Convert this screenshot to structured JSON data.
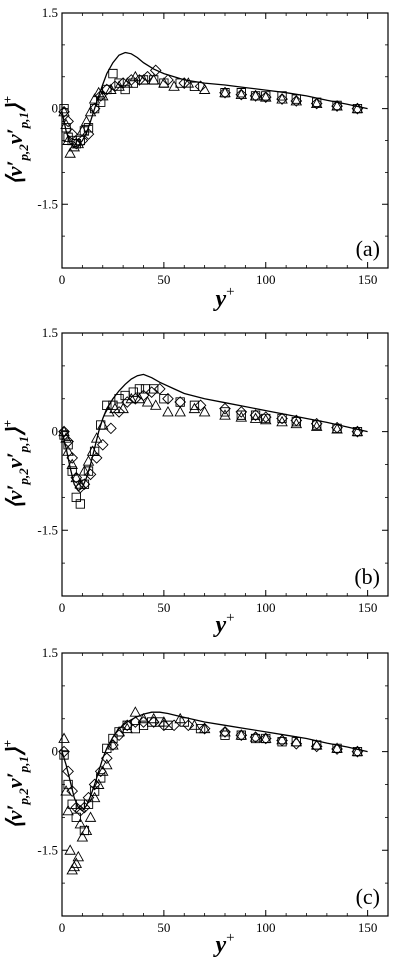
{
  "figure": {
    "ylabel_main": "⟨v′p,2v′p,1⟩",
    "ylabel_display": {
      "open": "⟨",
      "v1": "v′",
      "sub1": "p,2",
      "v2": "v′",
      "sub2": "p,1",
      "close": "⟩",
      "sup": "+"
    },
    "xlabel_display": {
      "base": "y",
      "sup": "+"
    }
  },
  "chart_data": [
    {
      "type": "scatter",
      "panel_label": "(a)",
      "xlabel": "y+",
      "ylabel": "⟨v′p,2v′p,1⟩+",
      "xlim": [
        0,
        160
      ],
      "ylim": [
        -2.5,
        1.5
      ],
      "x_ticks": [
        0,
        50,
        100,
        150
      ],
      "y_ticks": [
        1.5,
        0,
        -1.5
      ],
      "y_tick_labels": [
        "1.5",
        "0",
        "-1.5"
      ],
      "grid": false,
      "series": [
        {
          "marker": "line",
          "x": [
            0,
            2,
            4,
            6,
            8,
            10,
            12,
            14,
            16,
            18,
            20,
            22,
            25,
            28,
            31,
            34,
            37,
            40,
            45,
            50,
            55,
            60,
            70,
            80,
            90,
            100,
            110,
            120,
            130,
            140,
            150
          ],
          "y": [
            -0.05,
            -0.35,
            -0.55,
            -0.6,
            -0.58,
            -0.5,
            -0.38,
            -0.2,
            0.0,
            0.2,
            0.38,
            0.55,
            0.72,
            0.84,
            0.88,
            0.86,
            0.8,
            0.72,
            0.62,
            0.55,
            0.5,
            0.45,
            0.4,
            0.37,
            0.33,
            0.29,
            0.25,
            0.2,
            0.13,
            0.07,
            0.0
          ]
        },
        {
          "marker": "square",
          "x": [
            1,
            2,
            3,
            5,
            7,
            9,
            11,
            13,
            16,
            19,
            22,
            25,
            28,
            31,
            35,
            40,
            45,
            50,
            58,
            65,
            80,
            88,
            95,
            100,
            108,
            115,
            125,
            135,
            145
          ],
          "y": [
            0.0,
            -0.3,
            -0.45,
            -0.5,
            -0.55,
            -0.5,
            -0.35,
            -0.3,
            0.0,
            0.1,
            0.3,
            0.55,
            0.4,
            0.3,
            0.4,
            0.45,
            0.45,
            0.4,
            0.4,
            0.35,
            0.25,
            0.25,
            0.2,
            0.2,
            0.2,
            0.15,
            0.1,
            0.05,
            0.0
          ]
        },
        {
          "marker": "diamond",
          "x": [
            1,
            3,
            5,
            7,
            10,
            13,
            16,
            19,
            22,
            26,
            30,
            34,
            38,
            42,
            46,
            52,
            60,
            68,
            80,
            88,
            95,
            100,
            108,
            115,
            125,
            135,
            145
          ],
          "y": [
            -0.05,
            -0.2,
            -0.4,
            -0.55,
            -0.5,
            -0.4,
            0.0,
            0.2,
            0.3,
            0.35,
            0.4,
            0.45,
            0.45,
            0.5,
            0.6,
            0.45,
            0.4,
            0.35,
            0.25,
            0.22,
            0.2,
            0.18,
            0.15,
            0.12,
            0.08,
            0.04,
            0.0
          ]
        },
        {
          "marker": "triangle",
          "x": [
            1,
            2,
            3,
            4,
            6,
            8,
            10,
            12,
            14,
            16,
            18,
            20,
            24,
            28,
            32,
            36,
            40,
            45,
            50,
            55,
            62,
            70,
            80,
            88,
            95,
            100,
            108,
            115,
            125,
            135,
            145
          ],
          "y": [
            -0.05,
            -0.25,
            -0.5,
            -0.7,
            -0.6,
            -0.55,
            -0.35,
            -0.2,
            -0.05,
            0.15,
            0.25,
            0.2,
            0.3,
            0.35,
            0.4,
            0.5,
            0.45,
            0.45,
            0.4,
            0.35,
            0.4,
            0.3,
            0.25,
            0.22,
            0.2,
            0.18,
            0.15,
            0.12,
            0.08,
            0.04,
            0.0
          ]
        }
      ]
    },
    {
      "type": "scatter",
      "panel_label": "(b)",
      "xlabel": "y+",
      "ylabel": "⟨v′p,2v′p,1⟩+",
      "xlim": [
        0,
        160
      ],
      "ylim": [
        -2.5,
        1.5
      ],
      "x_ticks": [
        0,
        50,
        100,
        150
      ],
      "y_ticks": [
        1.5,
        0,
        -1.5
      ],
      "y_tick_labels": [
        "1.5",
        "0",
        "-1.5"
      ],
      "grid": false,
      "series": [
        {
          "marker": "line",
          "x": [
            0,
            2,
            4,
            6,
            8,
            10,
            12,
            14,
            16,
            18,
            20,
            22,
            25,
            28,
            31,
            34,
            37,
            40,
            44,
            48,
            55,
            60,
            70,
            80,
            90,
            100,
            110,
            120,
            130,
            140,
            150
          ],
          "y": [
            0.0,
            -0.25,
            -0.55,
            -0.8,
            -0.9,
            -0.85,
            -0.7,
            -0.5,
            -0.25,
            0.0,
            0.2,
            0.35,
            0.5,
            0.62,
            0.72,
            0.8,
            0.85,
            0.87,
            0.82,
            0.75,
            0.65,
            0.58,
            0.5,
            0.44,
            0.38,
            0.32,
            0.26,
            0.2,
            0.14,
            0.07,
            0.0
          ]
        },
        {
          "marker": "square",
          "x": [
            1,
            3,
            5,
            7,
            9,
            11,
            13,
            16,
            19,
            22,
            25,
            28,
            31,
            35,
            38,
            41,
            45,
            50,
            58,
            65,
            80,
            88,
            95,
            100,
            108,
            115,
            125,
            135,
            145
          ],
          "y": [
            -0.05,
            -0.2,
            -0.6,
            -1.0,
            -1.1,
            -0.8,
            -0.6,
            -0.3,
            0.1,
            0.4,
            0.4,
            0.5,
            0.55,
            0.6,
            0.65,
            0.65,
            0.65,
            0.5,
            0.45,
            0.4,
            0.3,
            0.25,
            0.25,
            0.2,
            0.2,
            0.15,
            0.1,
            0.05,
            0.0
          ]
        },
        {
          "marker": "diamond",
          "x": [
            1,
            3,
            5,
            7,
            9,
            11,
            14,
            17,
            20,
            24,
            28,
            32,
            36,
            40,
            44,
            48,
            52,
            58,
            68,
            80,
            88,
            95,
            100,
            108,
            115,
            125,
            135,
            145
          ],
          "y": [
            0.0,
            -0.15,
            -0.4,
            -0.7,
            -0.85,
            -0.8,
            -0.65,
            -0.4,
            -0.2,
            0.05,
            0.3,
            0.45,
            0.5,
            0.55,
            0.6,
            0.65,
            0.5,
            0.45,
            0.4,
            0.35,
            0.3,
            0.25,
            0.22,
            0.2,
            0.17,
            0.12,
            0.06,
            0.0
          ]
        },
        {
          "marker": "triangle",
          "x": [
            1,
            2,
            3,
            5,
            7,
            9,
            11,
            13,
            15,
            17,
            20,
            23,
            26,
            30,
            34,
            38,
            42,
            46,
            52,
            58,
            65,
            70,
            80,
            88,
            95,
            100,
            108,
            115,
            125,
            135,
            145
          ],
          "y": [
            0.0,
            -0.1,
            -0.3,
            -0.5,
            -0.7,
            -0.8,
            -0.6,
            -0.45,
            -0.3,
            -0.1,
            0.1,
            0.3,
            0.35,
            0.35,
            0.5,
            0.5,
            0.45,
            0.4,
            0.3,
            0.3,
            0.35,
            0.3,
            0.25,
            0.22,
            0.2,
            0.18,
            0.15,
            0.12,
            0.08,
            0.04,
            0.0
          ]
        }
      ]
    },
    {
      "type": "scatter",
      "panel_label": "(c)",
      "xlabel": "y+",
      "ylabel": "⟨v′p,2v′p,1⟩+",
      "xlim": [
        0,
        160
      ],
      "ylim": [
        -2.5,
        1.5
      ],
      "x_ticks": [
        0,
        50,
        100,
        150
      ],
      "y_ticks": [
        1.5,
        0,
        -1.5
      ],
      "y_tick_labels": [
        "1.5",
        "0",
        "-1.5"
      ],
      "grid": false,
      "series": [
        {
          "marker": "line",
          "x": [
            0,
            2,
            4,
            6,
            8,
            10,
            12,
            14,
            16,
            18,
            20,
            22,
            25,
            28,
            32,
            36,
            40,
            44,
            48,
            52,
            56,
            60,
            70,
            80,
            90,
            100,
            110,
            120,
            130,
            140,
            150
          ],
          "y": [
            0.0,
            -0.2,
            -0.45,
            -0.7,
            -0.85,
            -0.9,
            -0.82,
            -0.68,
            -0.5,
            -0.3,
            -0.1,
            0.05,
            0.22,
            0.35,
            0.45,
            0.52,
            0.57,
            0.6,
            0.6,
            0.58,
            0.55,
            0.52,
            0.45,
            0.4,
            0.35,
            0.3,
            0.25,
            0.2,
            0.13,
            0.07,
            0.0
          ]
        },
        {
          "marker": "square",
          "x": [
            1,
            3,
            5,
            7,
            9,
            11,
            13,
            16,
            19,
            22,
            25,
            28,
            32,
            36,
            40,
            44,
            48,
            52,
            60,
            68,
            80,
            88,
            95,
            100,
            108,
            115,
            125,
            135,
            145
          ],
          "y": [
            -0.05,
            -0.5,
            -0.8,
            -1.0,
            -0.8,
            -1.2,
            -0.8,
            -0.6,
            -0.4,
            0.05,
            0.2,
            0.3,
            0.4,
            0.35,
            0.4,
            0.45,
            0.45,
            0.4,
            0.45,
            0.35,
            0.25,
            0.25,
            0.2,
            0.2,
            0.15,
            0.15,
            0.1,
            0.05,
            0.0
          ]
        },
        {
          "marker": "diamond",
          "x": [
            1,
            3,
            5,
            7,
            9,
            11,
            13,
            16,
            19,
            22,
            25,
            28,
            32,
            36,
            40,
            45,
            50,
            55,
            62,
            70,
            80,
            88,
            95,
            100,
            108,
            115,
            125,
            135,
            145
          ],
          "y": [
            0.0,
            -0.3,
            -0.6,
            -0.85,
            -0.9,
            -0.85,
            -0.7,
            -0.5,
            -0.3,
            -0.1,
            0.1,
            0.25,
            0.4,
            0.45,
            0.45,
            0.45,
            0.4,
            0.4,
            0.4,
            0.35,
            0.3,
            0.25,
            0.22,
            0.2,
            0.17,
            0.12,
            0.08,
            0.04,
            0.0
          ]
        },
        {
          "marker": "triangle",
          "x": [
            1,
            2,
            3,
            4,
            5,
            6,
            7,
            8,
            9,
            10,
            12,
            14,
            16,
            18,
            20,
            22,
            25,
            28,
            32,
            36,
            40,
            45,
            50,
            58,
            65,
            70,
            80,
            88,
            95,
            100,
            108,
            115,
            125,
            135,
            145
          ],
          "y": [
            0.2,
            -0.6,
            -0.9,
            -1.5,
            -1.8,
            -1.75,
            -1.7,
            -1.6,
            -1.1,
            -1.3,
            -1.2,
            -1.0,
            -0.7,
            -0.5,
            -0.3,
            -0.2,
            0.1,
            0.3,
            0.35,
            0.6,
            0.5,
            0.5,
            0.45,
            0.5,
            0.4,
            0.35,
            0.3,
            0.25,
            0.22,
            0.2,
            0.18,
            0.15,
            0.1,
            0.05,
            0.0
          ]
        }
      ]
    }
  ]
}
